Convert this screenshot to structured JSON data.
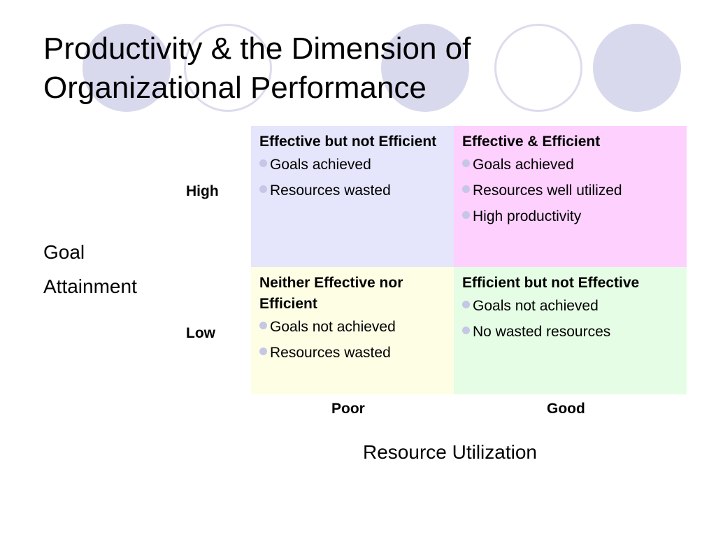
{
  "slide": {
    "title_line1": "Productivity & the Dimension of",
    "title_line2": "Organizational Performance"
  },
  "decor": {
    "circle_fill_color": "#d9d9ee",
    "circle_outline_color": "#dcdcee",
    "bullet_color": "#c6c6e6"
  },
  "matrix": {
    "y_axis": {
      "label_line1": "Goal",
      "label_line2": "Attainment",
      "high": "High",
      "low": "Low"
    },
    "x_axis": {
      "label": "Resource Utilization",
      "poor": "Poor",
      "good": "Good"
    },
    "cells": {
      "high_poor": {
        "title": "Effective but not Efficient",
        "color": "#e5e5fc",
        "items": [
          "Goals achieved",
          "Resources wasted"
        ]
      },
      "high_good": {
        "title": "Effective & Efficient",
        "color": "#fdd0fd",
        "items": [
          "Goals achieved",
          "Resources well utilized",
          "High productivity"
        ]
      },
      "low_poor": {
        "title": "Neither Effective nor Efficient",
        "color": "#fefee5",
        "items": [
          "Goals not achieved",
          "Resources wasted"
        ]
      },
      "low_good": {
        "title": "Efficient but not Effective",
        "color": "#e5fde5",
        "items": [
          "Goals not achieved",
          "No wasted resources"
        ]
      }
    }
  }
}
